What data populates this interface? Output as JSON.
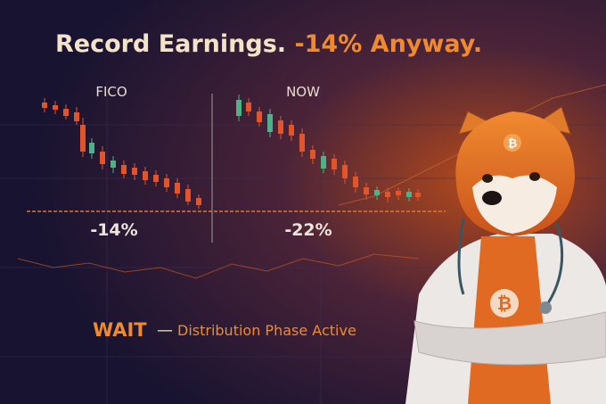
{
  "title": {
    "main": "Record Earnings.",
    "highlight": "-14% Anyway."
  },
  "charts": [
    {
      "label": "FICO",
      "change": "-14%"
    },
    {
      "label": "NOW",
      "change": "-22%"
    }
  ],
  "footer": {
    "action": "WAIT",
    "dash": "—",
    "text": "Distribution Phase Active"
  }
}
